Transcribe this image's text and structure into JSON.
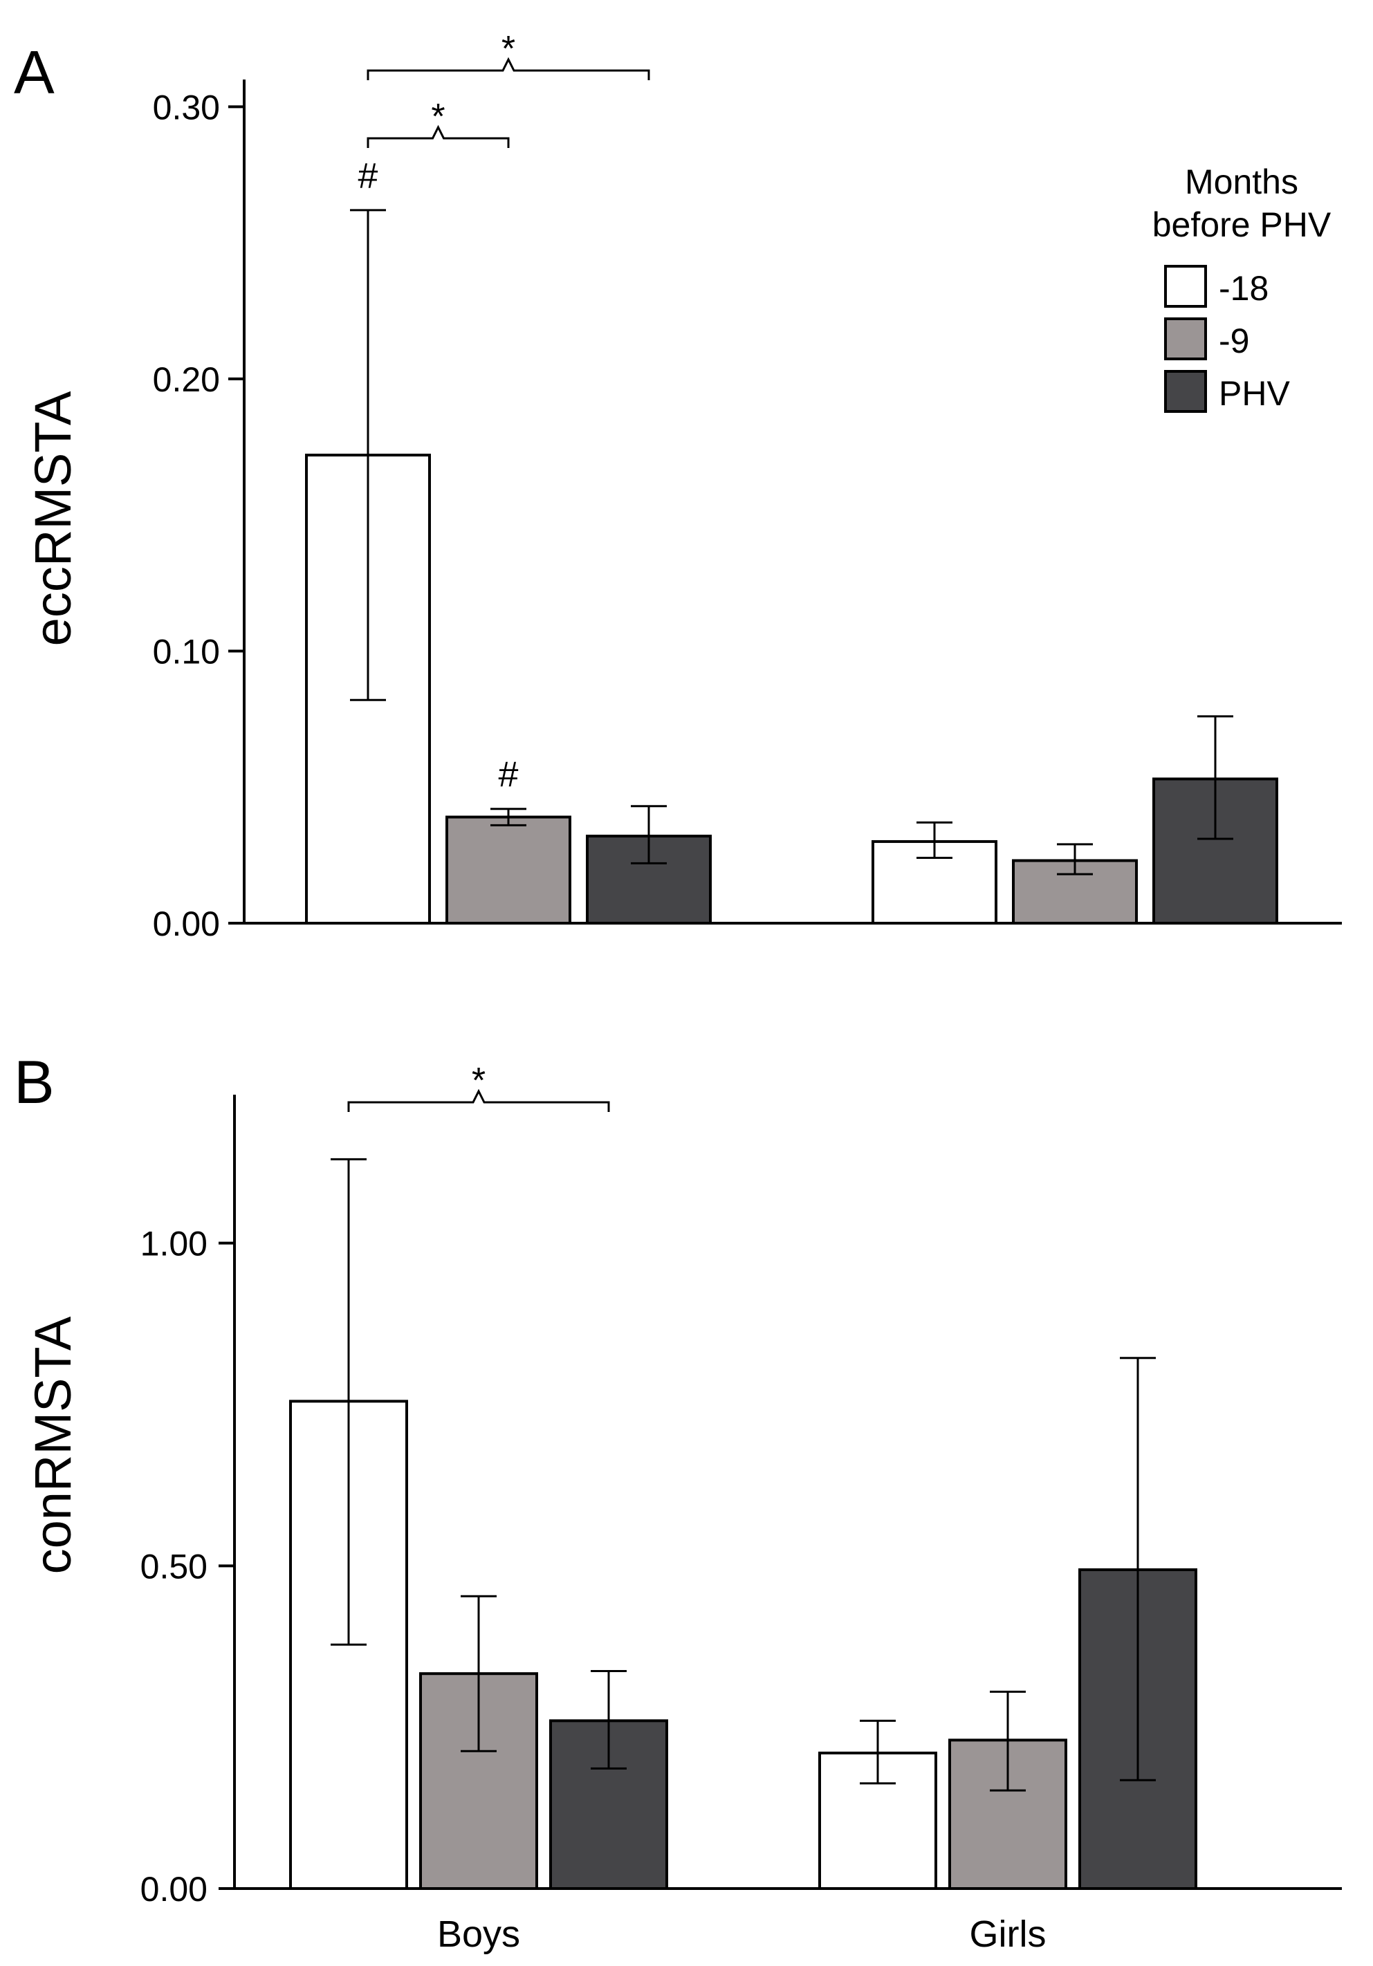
{
  "chart_data": [
    {
      "type": "bar",
      "panel_label": "A",
      "ylabel": "eccRMSTA",
      "xlabel": "",
      "ylim": [
        0,
        0.31
      ],
      "yticks": [
        0.0,
        0.1,
        0.2,
        0.3
      ],
      "ytick_labels": [
        "0.00",
        "0.10",
        "0.20",
        "0.30"
      ],
      "categories": [
        "Boys",
        "Girls"
      ],
      "show_category_labels": false,
      "series": [
        {
          "name": "-18",
          "color": "#ffffff",
          "values": [
            0.172,
            0.03
          ],
          "err_low": [
            0.082,
            0.024
          ],
          "err_high": [
            0.262,
            0.037
          ]
        },
        {
          "name": "-9",
          "color": "#9b9595",
          "values": [
            0.039,
            0.023
          ],
          "err_low": [
            0.036,
            0.018
          ],
          "err_high": [
            0.042,
            0.029
          ]
        },
        {
          "name": "PHV",
          "color": "#454548",
          "values": [
            0.032,
            0.053
          ],
          "err_low": [
            0.022,
            0.031
          ],
          "err_high": [
            0.043,
            0.076
          ]
        }
      ],
      "marks": [
        {
          "category": 0,
          "series": 0,
          "symbol": "#"
        },
        {
          "category": 0,
          "series": 1,
          "symbol": "#"
        }
      ],
      "brackets": [
        {
          "category": 0,
          "from_series": 0,
          "to_series": 1,
          "label": "*",
          "level": 0
        },
        {
          "category": 0,
          "from_series": 0,
          "to_series": 2,
          "label": "*",
          "level": 1
        }
      ],
      "legend": {
        "title_lines": [
          "Months",
          "before PHV"
        ],
        "entries": [
          "-18",
          "-9",
          "PHV"
        ],
        "placement": "top-right"
      }
    },
    {
      "type": "bar",
      "panel_label": "B",
      "ylabel": "conRMSTA",
      "xlabel": "",
      "ylim": [
        0,
        1.23
      ],
      "yticks": [
        0.0,
        0.5,
        1.0
      ],
      "ytick_labels": [
        "0.00",
        "0.50",
        "1.00"
      ],
      "categories": [
        "Boys",
        "Girls"
      ],
      "show_category_labels": true,
      "series": [
        {
          "name": "-18",
          "color": "#ffffff",
          "values": [
            0.755,
            0.21
          ],
          "err_low": [
            0.378,
            0.163
          ],
          "err_high": [
            1.13,
            0.26
          ]
        },
        {
          "name": "-9",
          "color": "#9b9595",
          "values": [
            0.333,
            0.23
          ],
          "err_low": [
            0.213,
            0.152
          ],
          "err_high": [
            0.453,
            0.305
          ]
        },
        {
          "name": "PHV",
          "color": "#454548",
          "values": [
            0.26,
            0.494
          ],
          "err_low": [
            0.186,
            0.168
          ],
          "err_high": [
            0.337,
            0.822
          ]
        }
      ],
      "marks": [],
      "brackets": [
        {
          "category": 0,
          "from_series": 0,
          "to_series": 2,
          "label": "*",
          "level": 0
        }
      ],
      "legend": null
    }
  ]
}
